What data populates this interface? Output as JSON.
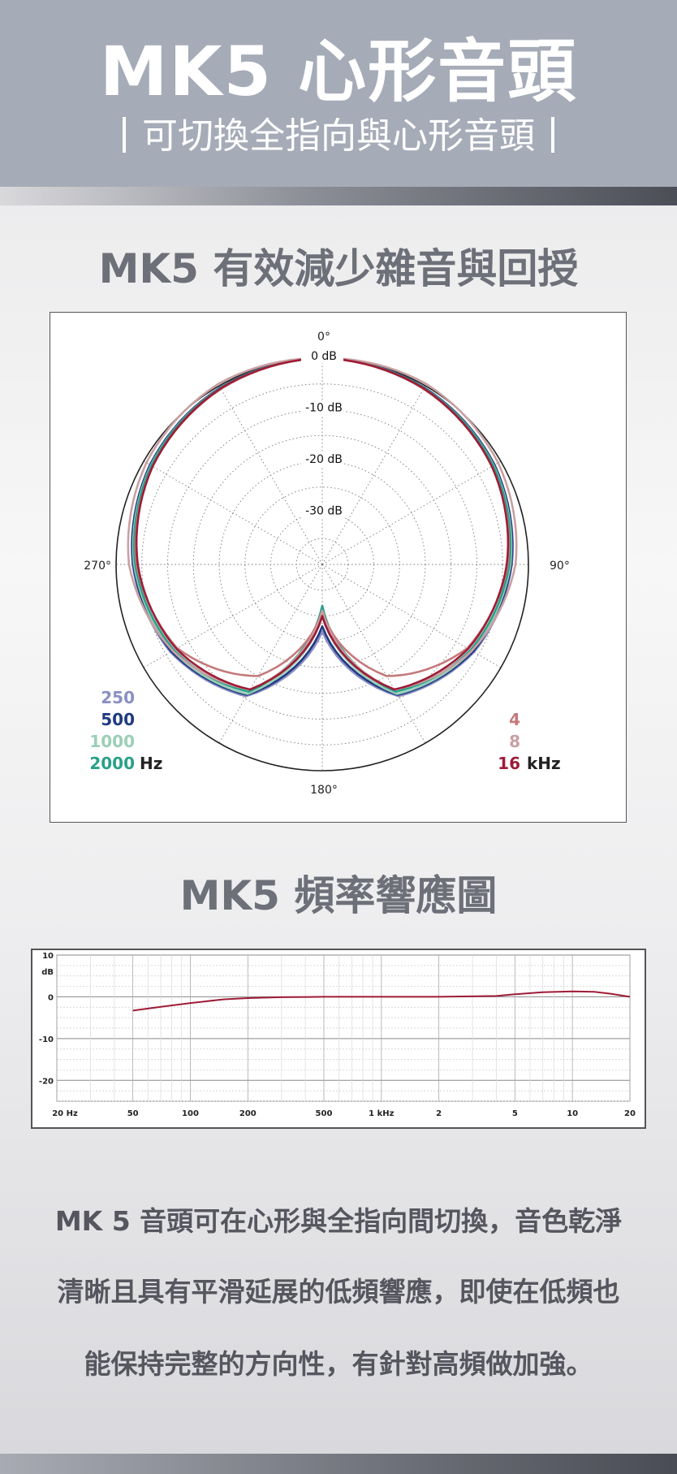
{
  "header": {
    "title": "MK5 心形音頭",
    "subtitle": "可切換全指向與心形音頭"
  },
  "section1_title": "MK5 有效減少雜音與回授",
  "section2_title": "MK5 頻率響應圖",
  "description": [
    "MK 5 音頭可在心形與全指向間切換，音色乾淨",
    "清晰且具有平滑延展的低頻響應，即使在低頻也",
    "能保持完整的方向性，有針對高頻做加強。"
  ],
  "chart_data": [
    {
      "type": "polar",
      "angle_labels": [
        "0°",
        "90°",
        "180°",
        "270°"
      ],
      "ring_labels": [
        "0 dB",
        "-10 dB",
        "-20 dB",
        "-30 dB"
      ],
      "r_range": [
        -40,
        0
      ],
      "grid": true,
      "legend_left": {
        "entries": [
          "250",
          "500",
          "1000",
          "2000"
        ],
        "colors": [
          "#8a8fc4",
          "#1f3a80",
          "#9bcfb8",
          "#2aa08a"
        ],
        "unit": "Hz"
      },
      "legend_right": {
        "entries": [
          "4",
          "8",
          "16"
        ],
        "colors": [
          "#c47a7c",
          "#c9a0a2",
          "#9e1c36"
        ],
        "unit": "kHz"
      },
      "series": [
        {
          "name": "250",
          "color": "#8a8fc4",
          "theta": [
            0,
            30,
            60,
            90,
            120,
            150,
            180,
            210,
            240,
            270,
            300,
            330,
            360
          ],
          "db": [
            0,
            -0.4,
            -1.4,
            -3.2,
            -6,
            -10.5,
            -27,
            -10.5,
            -6,
            -3.2,
            -1.4,
            -0.4,
            0
          ]
        },
        {
          "name": "500",
          "color": "#1f3a80",
          "theta": [
            0,
            30,
            60,
            90,
            120,
            150,
            180,
            210,
            240,
            270,
            300,
            330,
            360
          ],
          "db": [
            0,
            -0.4,
            -1.4,
            -3.3,
            -6.2,
            -10.8,
            -28,
            -10.8,
            -6.2,
            -3.3,
            -1.4,
            -0.4,
            0
          ]
        },
        {
          "name": "1000",
          "color": "#9bcfb8",
          "theta": [
            0,
            30,
            60,
            90,
            120,
            150,
            180,
            210,
            240,
            270,
            300,
            330,
            360
          ],
          "db": [
            0,
            -0.5,
            -1.6,
            -3.5,
            -6.5,
            -11,
            -30,
            -11,
            -6.5,
            -3.5,
            -1.6,
            -0.5,
            0
          ]
        },
        {
          "name": "2000",
          "color": "#2aa08a",
          "theta": [
            0,
            30,
            60,
            90,
            120,
            150,
            180,
            210,
            240,
            270,
            300,
            330,
            360
          ],
          "db": [
            0,
            -0.5,
            -1.7,
            -3.7,
            -6.8,
            -11.5,
            -32,
            -11.5,
            -6.8,
            -3.7,
            -1.7,
            -0.5,
            0
          ]
        },
        {
          "name": "4",
          "color": "#c47a7c",
          "theta": [
            0,
            30,
            60,
            90,
            120,
            150,
            180,
            210,
            240,
            270,
            300,
            330,
            360
          ],
          "db": [
            0,
            -0.7,
            -2,
            -4,
            -7.5,
            -15,
            -31,
            -15,
            -7.5,
            -4,
            -2,
            -0.7,
            0
          ]
        },
        {
          "name": "8",
          "color": "#c9a0a2",
          "theta": [
            0,
            30,
            60,
            90,
            120,
            150,
            180,
            210,
            240,
            270,
            300,
            330,
            360
          ],
          "db": [
            0,
            0.4,
            -0.6,
            -2.5,
            -6.5,
            -12,
            -31,
            -12,
            -6.5,
            -2.5,
            -0.6,
            0.4,
            0
          ]
        },
        {
          "name": "16",
          "color": "#9e1c36",
          "theta": [
            0,
            30,
            60,
            90,
            120,
            150,
            180,
            210,
            240,
            270,
            300,
            330,
            360
          ],
          "db": [
            0,
            -0.6,
            -2,
            -4.2,
            -7.3,
            -12,
            -30,
            -12,
            -7.3,
            -4.2,
            -2,
            -0.6,
            0
          ]
        }
      ]
    },
    {
      "type": "line",
      "ylabel": "dB",
      "ylim": [
        -25,
        10
      ],
      "y_ticks": [
        10,
        0,
        -10,
        -20
      ],
      "x_ticks": [
        "20 Hz",
        "50",
        "100",
        "200",
        "500",
        "1 kHz",
        "2",
        "5",
        "10",
        "20"
      ],
      "x_tick_values": [
        20,
        50,
        100,
        200,
        500,
        1000,
        2000,
        5000,
        10000,
        20000
      ],
      "xlim": [
        20,
        20000
      ],
      "x_scale": "log",
      "grid": true,
      "series": [
        {
          "color": "#9e1c36",
          "x": [
            50,
            70,
            100,
            150,
            200,
            300,
            500,
            1000,
            2000,
            4000,
            5000,
            7000,
            10000,
            13000,
            16000,
            20000
          ],
          "y": [
            -3.3,
            -2.4,
            -1.5,
            -0.6,
            -0.3,
            -0.1,
            0,
            0,
            0,
            0.2,
            0.6,
            1.1,
            1.3,
            1.2,
            0.7,
            0
          ]
        }
      ]
    }
  ]
}
